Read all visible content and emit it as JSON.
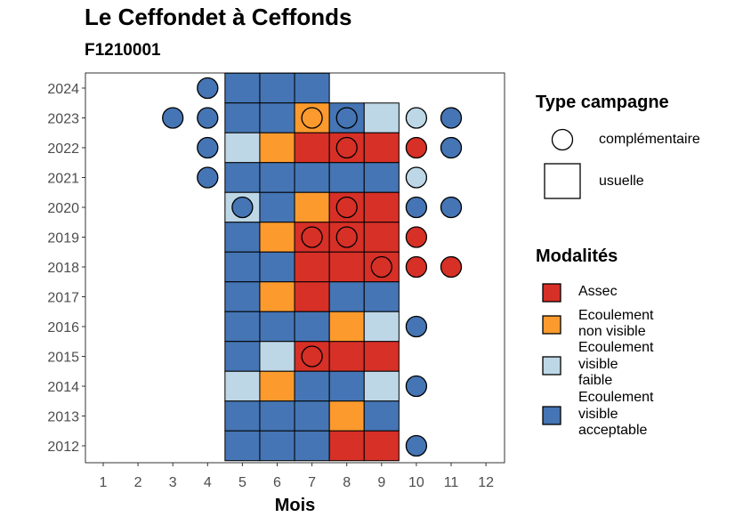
{
  "chart_data": {
    "type": "heatmap",
    "title": "Le Ceffondet à Ceffonds",
    "subtitle": "F1210001",
    "xlabel": "Mois",
    "ylabel": "",
    "x_ticks": [
      "1",
      "2",
      "3",
      "4",
      "5",
      "6",
      "7",
      "8",
      "9",
      "10",
      "11",
      "12"
    ],
    "y_ticks": [
      "2012",
      "2013",
      "2014",
      "2015",
      "2016",
      "2017",
      "2018",
      "2019",
      "2020",
      "2021",
      "2022",
      "2023",
      "2024"
    ],
    "xlim": [
      0.5,
      12.5
    ],
    "ylim": [
      2011.5,
      2024.5
    ],
    "grid": false,
    "colors": {
      "Assec": "#d73027",
      "Ecoulement non visible": "#fd9a2e",
      "Ecoulement visible faible": "#bdd7e7",
      "Ecoulement visible acceptable": "#4575b4"
    },
    "usuelle": [
      {
        "year": 2024,
        "month": 5,
        "modalite": "Ecoulement visible acceptable"
      },
      {
        "year": 2024,
        "month": 6,
        "modalite": "Ecoulement visible acceptable"
      },
      {
        "year": 2024,
        "month": 7,
        "modalite": "Ecoulement visible acceptable"
      },
      {
        "year": 2023,
        "month": 5,
        "modalite": "Ecoulement visible acceptable"
      },
      {
        "year": 2023,
        "month": 6,
        "modalite": "Ecoulement visible acceptable"
      },
      {
        "year": 2023,
        "month": 7,
        "modalite": "Ecoulement non visible"
      },
      {
        "year": 2023,
        "month": 8,
        "modalite": "Ecoulement visible acceptable"
      },
      {
        "year": 2023,
        "month": 9,
        "modalite": "Ecoulement visible faible"
      },
      {
        "year": 2022,
        "month": 5,
        "modalite": "Ecoulement visible faible"
      },
      {
        "year": 2022,
        "month": 6,
        "modalite": "Ecoulement non visible"
      },
      {
        "year": 2022,
        "month": 7,
        "modalite": "Assec"
      },
      {
        "year": 2022,
        "month": 8,
        "modalite": "Assec"
      },
      {
        "year": 2022,
        "month": 9,
        "modalite": "Assec"
      },
      {
        "year": 2021,
        "month": 5,
        "modalite": "Ecoulement visible acceptable"
      },
      {
        "year": 2021,
        "month": 6,
        "modalite": "Ecoulement visible acceptable"
      },
      {
        "year": 2021,
        "month": 7,
        "modalite": "Ecoulement visible acceptable"
      },
      {
        "year": 2021,
        "month": 8,
        "modalite": "Ecoulement visible acceptable"
      },
      {
        "year": 2021,
        "month": 9,
        "modalite": "Ecoulement visible acceptable"
      },
      {
        "year": 2020,
        "month": 5,
        "modalite": "Ecoulement visible faible"
      },
      {
        "year": 2020,
        "month": 6,
        "modalite": "Ecoulement visible acceptable"
      },
      {
        "year": 2020,
        "month": 7,
        "modalite": "Ecoulement non visible"
      },
      {
        "year": 2020,
        "month": 8,
        "modalite": "Assec"
      },
      {
        "year": 2020,
        "month": 9,
        "modalite": "Assec"
      },
      {
        "year": 2019,
        "month": 5,
        "modalite": "Ecoulement visible acceptable"
      },
      {
        "year": 2019,
        "month": 6,
        "modalite": "Ecoulement non visible"
      },
      {
        "year": 2019,
        "month": 7,
        "modalite": "Assec"
      },
      {
        "year": 2019,
        "month": 8,
        "modalite": "Assec"
      },
      {
        "year": 2019,
        "month": 9,
        "modalite": "Assec"
      },
      {
        "year": 2018,
        "month": 5,
        "modalite": "Ecoulement visible acceptable"
      },
      {
        "year": 2018,
        "month": 6,
        "modalite": "Ecoulement visible acceptable"
      },
      {
        "year": 2018,
        "month": 7,
        "modalite": "Assec"
      },
      {
        "year": 2018,
        "month": 8,
        "modalite": "Assec"
      },
      {
        "year": 2018,
        "month": 9,
        "modalite": "Assec"
      },
      {
        "year": 2017,
        "month": 5,
        "modalite": "Ecoulement visible acceptable"
      },
      {
        "year": 2017,
        "month": 6,
        "modalite": "Ecoulement non visible"
      },
      {
        "year": 2017,
        "month": 7,
        "modalite": "Assec"
      },
      {
        "year": 2017,
        "month": 8,
        "modalite": "Ecoulement visible acceptable"
      },
      {
        "year": 2017,
        "month": 9,
        "modalite": "Ecoulement visible acceptable"
      },
      {
        "year": 2016,
        "month": 5,
        "modalite": "Ecoulement visible acceptable"
      },
      {
        "year": 2016,
        "month": 6,
        "modalite": "Ecoulement visible acceptable"
      },
      {
        "year": 2016,
        "month": 7,
        "modalite": "Ecoulement visible acceptable"
      },
      {
        "year": 2016,
        "month": 8,
        "modalite": "Ecoulement non visible"
      },
      {
        "year": 2016,
        "month": 9,
        "modalite": "Ecoulement visible faible"
      },
      {
        "year": 2015,
        "month": 5,
        "modalite": "Ecoulement visible acceptable"
      },
      {
        "year": 2015,
        "month": 6,
        "modalite": "Ecoulement visible faible"
      },
      {
        "year": 2015,
        "month": 7,
        "modalite": "Assec"
      },
      {
        "year": 2015,
        "month": 8,
        "modalite": "Assec"
      },
      {
        "year": 2015,
        "month": 9,
        "modalite": "Assec"
      },
      {
        "year": 2014,
        "month": 5,
        "modalite": "Ecoulement visible faible"
      },
      {
        "year": 2014,
        "month": 6,
        "modalite": "Ecoulement non visible"
      },
      {
        "year": 2014,
        "month": 7,
        "modalite": "Ecoulement visible acceptable"
      },
      {
        "year": 2014,
        "month": 8,
        "modalite": "Ecoulement visible acceptable"
      },
      {
        "year": 2014,
        "month": 9,
        "modalite": "Ecoulement visible faible"
      },
      {
        "year": 2013,
        "month": 5,
        "modalite": "Ecoulement visible acceptable"
      },
      {
        "year": 2013,
        "month": 6,
        "modalite": "Ecoulement visible acceptable"
      },
      {
        "year": 2013,
        "month": 7,
        "modalite": "Ecoulement visible acceptable"
      },
      {
        "year": 2013,
        "month": 8,
        "modalite": "Ecoulement non visible"
      },
      {
        "year": 2013,
        "month": 9,
        "modalite": "Ecoulement visible acceptable"
      },
      {
        "year": 2012,
        "month": 5,
        "modalite": "Ecoulement visible acceptable"
      },
      {
        "year": 2012,
        "month": 6,
        "modalite": "Ecoulement visible acceptable"
      },
      {
        "year": 2012,
        "month": 7,
        "modalite": "Ecoulement visible acceptable"
      },
      {
        "year": 2012,
        "month": 8,
        "modalite": "Assec"
      },
      {
        "year": 2012,
        "month": 9,
        "modalite": "Assec"
      }
    ],
    "complementaire": [
      {
        "year": 2024,
        "month": 4,
        "modalite": "Ecoulement visible acceptable"
      },
      {
        "year": 2023,
        "month": 3,
        "modalite": "Ecoulement visible acceptable"
      },
      {
        "year": 2023,
        "month": 4,
        "modalite": "Ecoulement visible acceptable"
      },
      {
        "year": 2023,
        "month": 7,
        "modalite": "Ecoulement non visible"
      },
      {
        "year": 2023,
        "month": 8,
        "modalite": "Ecoulement visible acceptable"
      },
      {
        "year": 2023,
        "month": 10,
        "modalite": "Ecoulement visible faible"
      },
      {
        "year": 2023,
        "month": 11,
        "modalite": "Ecoulement visible acceptable"
      },
      {
        "year": 2022,
        "month": 4,
        "modalite": "Ecoulement visible acceptable"
      },
      {
        "year": 2022,
        "month": 8,
        "modalite": "Assec"
      },
      {
        "year": 2022,
        "month": 10,
        "modalite": "Assec"
      },
      {
        "year": 2022,
        "month": 11,
        "modalite": "Ecoulement visible acceptable"
      },
      {
        "year": 2021,
        "month": 4,
        "modalite": "Ecoulement visible acceptable"
      },
      {
        "year": 2021,
        "month": 10,
        "modalite": "Ecoulement visible faible"
      },
      {
        "year": 2020,
        "month": 5,
        "modalite": "Ecoulement visible acceptable"
      },
      {
        "year": 2020,
        "month": 8,
        "modalite": "Assec"
      },
      {
        "year": 2020,
        "month": 10,
        "modalite": "Ecoulement visible acceptable"
      },
      {
        "year": 2020,
        "month": 11,
        "modalite": "Ecoulement visible acceptable"
      },
      {
        "year": 2019,
        "month": 7,
        "modalite": "Assec"
      },
      {
        "year": 2019,
        "month": 8,
        "modalite": "Assec"
      },
      {
        "year": 2019,
        "month": 10,
        "modalite": "Assec"
      },
      {
        "year": 2018,
        "month": 9,
        "modalite": "Assec"
      },
      {
        "year": 2018,
        "month": 10,
        "modalite": "Assec"
      },
      {
        "year": 2018,
        "month": 11,
        "modalite": "Assec"
      },
      {
        "year": 2016,
        "month": 10,
        "modalite": "Ecoulement visible acceptable"
      },
      {
        "year": 2015,
        "month": 7,
        "modalite": "Assec"
      },
      {
        "year": 2014,
        "month": 10,
        "modalite": "Ecoulement visible acceptable"
      },
      {
        "year": 2012,
        "month": 10,
        "modalite": "Ecoulement visible acceptable"
      }
    ],
    "legend": {
      "placement": "right",
      "type_title": "Type campagne",
      "type_items": [
        "complémentaire",
        "usuelle"
      ],
      "modalites_title": "Modalités",
      "modalites_items": [
        {
          "key": "Assec",
          "lines": [
            "Assec"
          ]
        },
        {
          "key": "Ecoulement non visible",
          "lines": [
            "Ecoulement",
            "non visible"
          ]
        },
        {
          "key": "Ecoulement visible faible",
          "lines": [
            "Ecoulement",
            "visible",
            "faible"
          ]
        },
        {
          "key": "Ecoulement visible acceptable",
          "lines": [
            "Ecoulement",
            "visible",
            "acceptable"
          ]
        }
      ]
    }
  }
}
